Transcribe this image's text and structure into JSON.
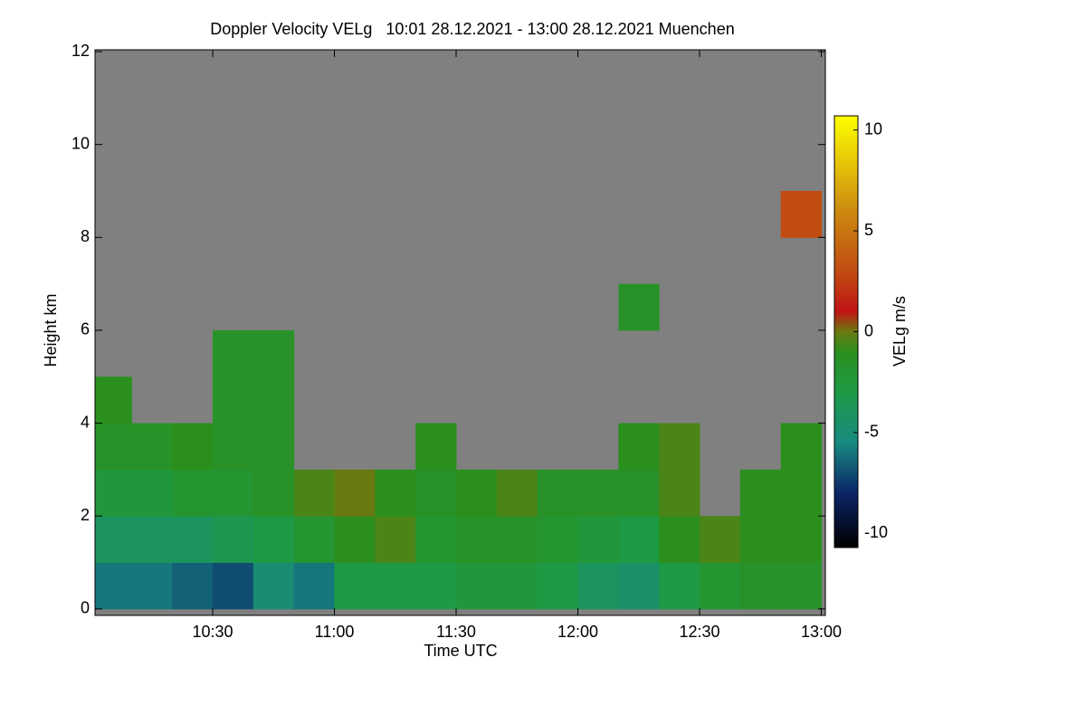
{
  "chart_data": {
    "type": "heatmap",
    "title": "Doppler Velocity VELg   10:01 28.12.2021 - 13:00 28.12.2021 Muenchen",
    "x_label": "Time UTC",
    "y_label": "Height km",
    "colorbar_label": "VELg m/s",
    "xlim": [
      "10:01",
      "13:01"
    ],
    "xticks": [
      "10:30",
      "11:00",
      "11:30",
      "12:00",
      "12:30",
      "13:00"
    ],
    "ylim": [
      -0.14,
      12.04
    ],
    "yticks": [
      0,
      2,
      4,
      6,
      8,
      10,
      12
    ],
    "clim": [
      -10.7,
      10.7
    ],
    "cticks": [
      -10,
      -5,
      0,
      5,
      10
    ],
    "no_data_color": "#808080",
    "colormap": [
      {
        "value": -10.7,
        "color": "#000000"
      },
      {
        "value": -8,
        "color": "#0b2466"
      },
      {
        "value": -5.5,
        "color": "#188a80"
      },
      {
        "value": -3,
        "color": "#1e9a45"
      },
      {
        "value": -1,
        "color": "#2b8f1e"
      },
      {
        "value": 0,
        "color": "#6a7a12"
      },
      {
        "value": 1,
        "color": "#c01414"
      },
      {
        "value": 3,
        "color": "#c04c12"
      },
      {
        "value": 6,
        "color": "#cc8a10"
      },
      {
        "value": 10.7,
        "color": "#ffff00"
      }
    ],
    "x_edges": [
      "10:01",
      "10:10",
      "10:20",
      "10:30",
      "10:40",
      "10:50",
      "11:00",
      "11:10",
      "11:20",
      "11:30",
      "11:40",
      "11:50",
      "12:00",
      "12:10",
      "12:20",
      "12:30",
      "12:40",
      "12:50",
      "13:00"
    ],
    "y_edges": [
      0,
      1,
      2,
      3,
      4,
      5,
      6,
      7,
      8,
      9,
      10,
      11,
      12
    ],
    "z": [
      [
        -6,
        -6,
        -6.5,
        -7,
        -5,
        -6,
        -3,
        -3,
        -3,
        -2.5,
        -2.5,
        -3,
        -4,
        -4.5,
        -3,
        -2,
        -1.5,
        -1.5
      ],
      [
        -4,
        -4,
        -4,
        -3.5,
        -3,
        -2,
        -1,
        -0.5,
        -2,
        -1.5,
        -1.5,
        -2,
        -2.5,
        -3,
        -1,
        -0.5,
        -1,
        -1
      ],
      [
        -2.5,
        -2.5,
        -2,
        -2,
        -1.5,
        -0.5,
        0,
        -1,
        -1.5,
        -1,
        -0.5,
        -1.5,
        -1.5,
        -1.5,
        -0.5,
        null,
        -1,
        -1
      ],
      [
        -1.5,
        -1.5,
        -1,
        -1.5,
        -1.5,
        null,
        null,
        null,
        -1,
        null,
        null,
        null,
        null,
        -1,
        -0.5,
        null,
        null,
        -1
      ],
      [
        -1,
        null,
        null,
        -1.5,
        -1.5,
        null,
        null,
        null,
        null,
        null,
        null,
        null,
        null,
        null,
        null,
        null,
        null,
        null
      ],
      [
        null,
        null,
        null,
        -1.5,
        -1.5,
        null,
        null,
        null,
        null,
        null,
        null,
        null,
        null,
        null,
        null,
        null,
        null,
        null
      ],
      [
        null,
        null,
        null,
        null,
        null,
        null,
        null,
        null,
        null,
        null,
        null,
        null,
        null,
        -1.5,
        null,
        null,
        null,
        null
      ],
      [
        null,
        null,
        null,
        null,
        null,
        null,
        null,
        null,
        null,
        null,
        null,
        null,
        null,
        null,
        null,
        null,
        null,
        null
      ],
      [
        null,
        null,
        null,
        null,
        null,
        null,
        null,
        null,
        null,
        null,
        null,
        null,
        null,
        null,
        null,
        null,
        null,
        3
      ],
      [
        null,
        null,
        null,
        null,
        null,
        null,
        null,
        null,
        null,
        null,
        null,
        null,
        null,
        null,
        null,
        null,
        null,
        null
      ],
      [
        null,
        null,
        null,
        null,
        null,
        null,
        null,
        null,
        null,
        null,
        null,
        null,
        null,
        null,
        null,
        null,
        null,
        null
      ],
      [
        null,
        null,
        null,
        null,
        null,
        null,
        null,
        null,
        null,
        null,
        null,
        null,
        null,
        null,
        null,
        null,
        null,
        null
      ]
    ]
  }
}
